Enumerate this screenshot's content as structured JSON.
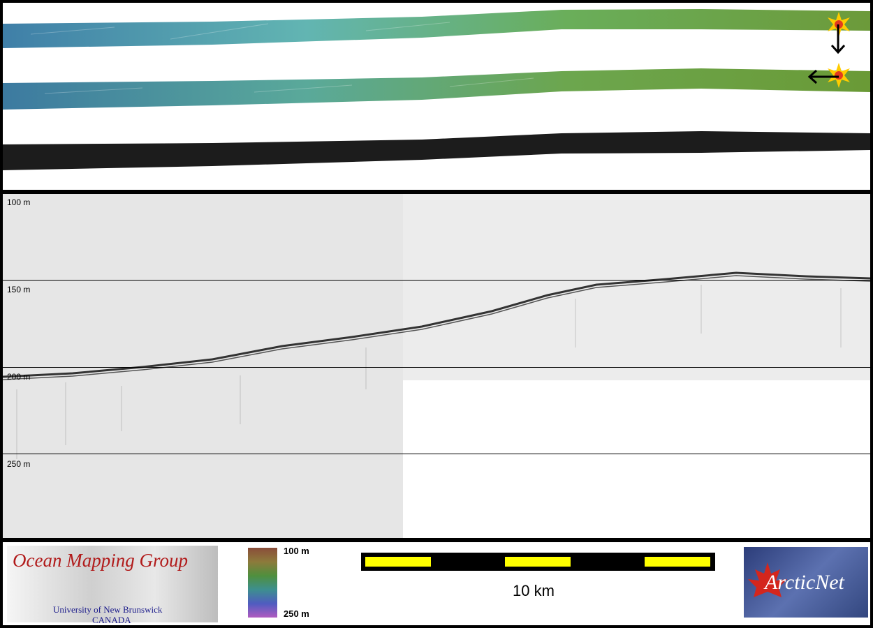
{
  "profile": {
    "depth_labels": [
      "100 m",
      "150 m",
      "200 m",
      "250 m"
    ]
  },
  "legend": {
    "omg_logo": {
      "title": "Ocean Mapping Group",
      "university": "University of New Brunswick",
      "country": "CANADA"
    },
    "colorbar": {
      "top_label": "100 m",
      "bottom_label": "250 m"
    },
    "scalebar": {
      "label": "10 km",
      "segment_color": "#ffff00"
    },
    "arcticnet_logo": {
      "text": "ArcticNet"
    }
  },
  "markers": {
    "start_icon": "sun-burst-icon",
    "arrow_down": "arrow-down-icon",
    "arrow_left": "arrow-left-icon"
  }
}
